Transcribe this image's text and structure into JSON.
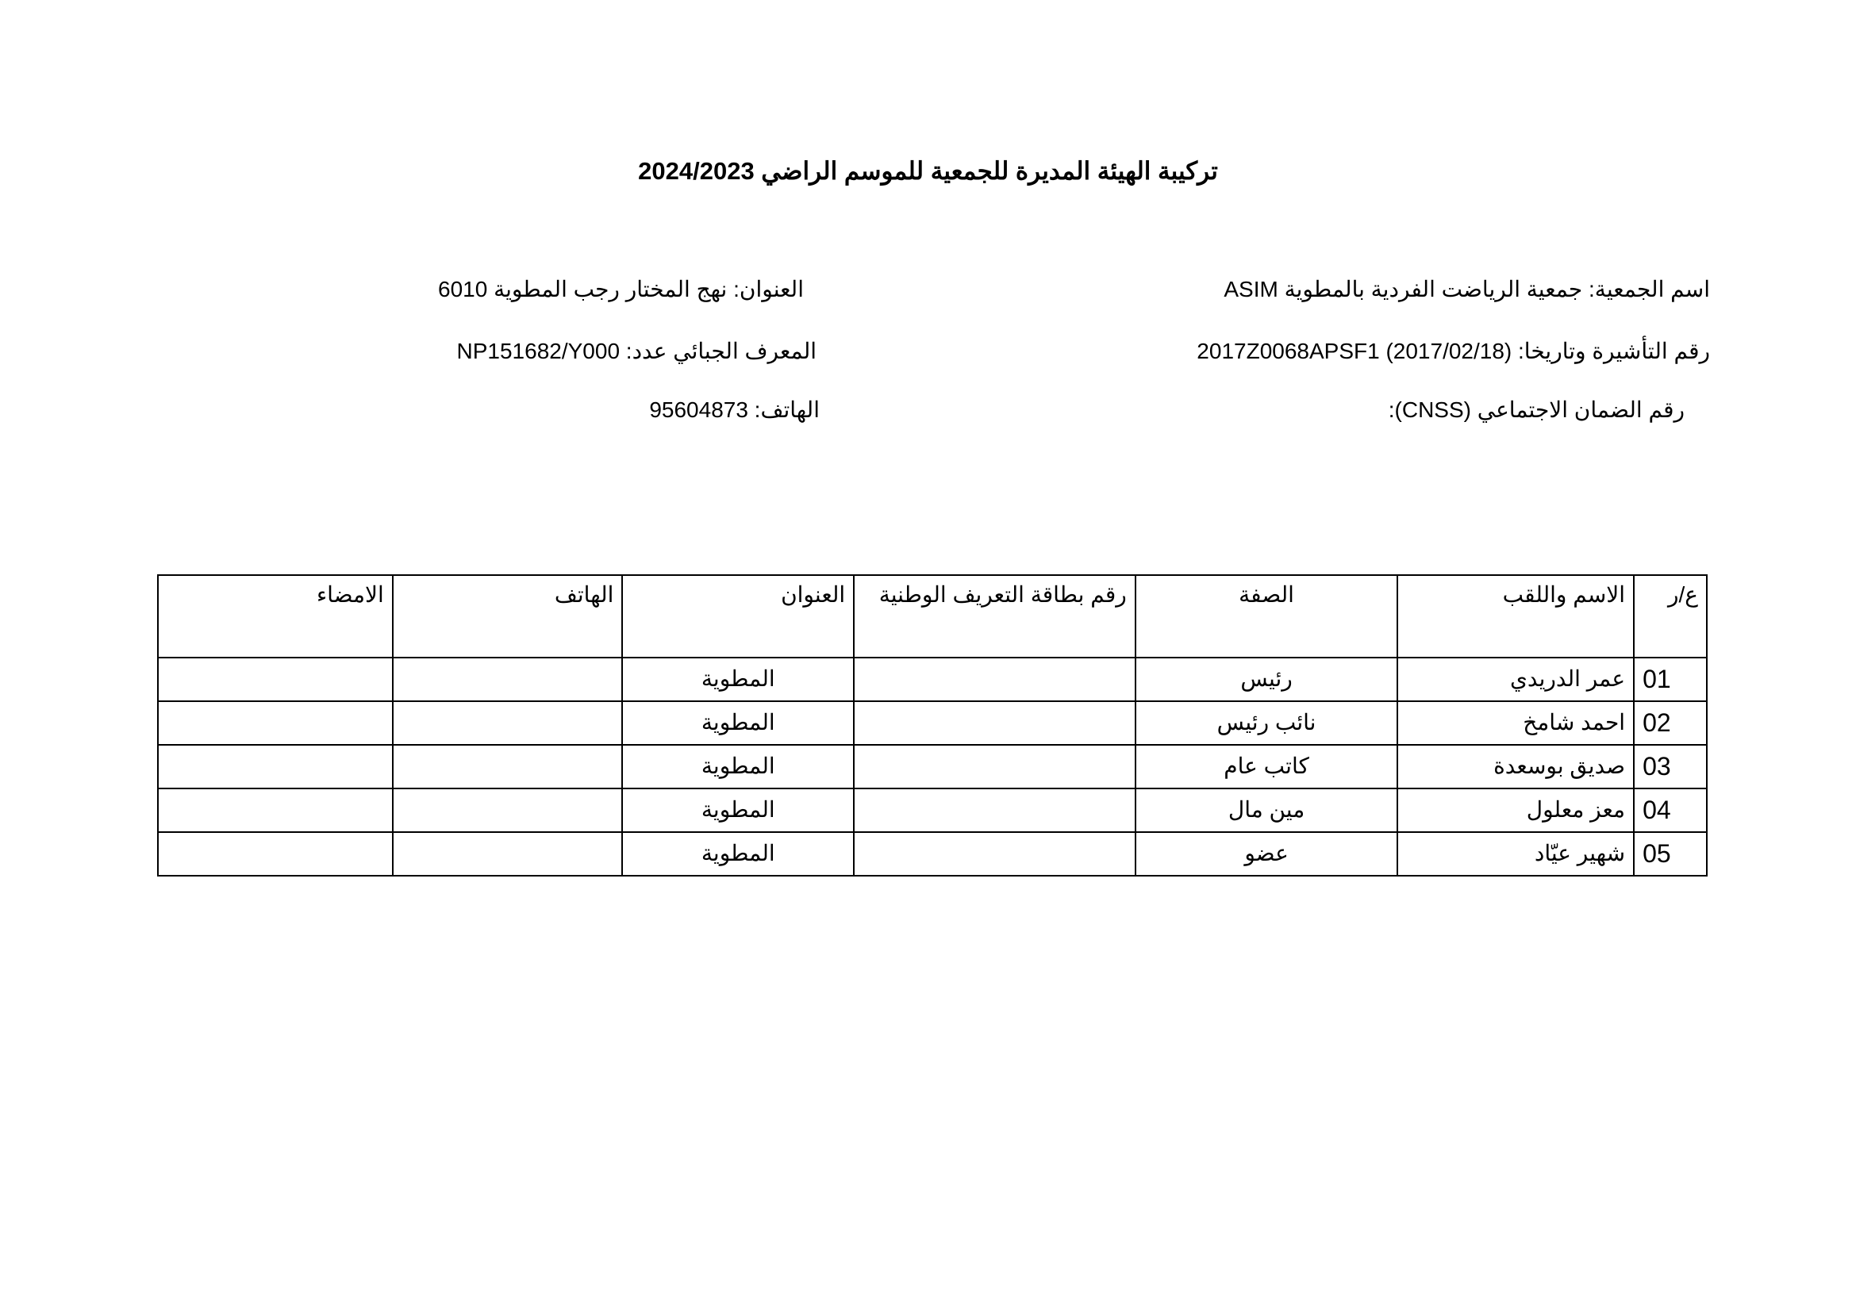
{
  "title": "تركيبة الهيئة المديرة للجمعية للموسم الراضي 2024/2023",
  "info": {
    "association_name": "اسم الجمعية: جمعية الرياضت الفردية بالمطوية  ASIM",
    "visa": "رقم التأشيرة وتاريخا:  2017Z0068APSF1 (2017/02/18)",
    "cnss": "رقم الضمان الاجتماعي (CNSS):",
    "address": "العنوان: نهج المختار رجب المطوية 6010",
    "tax_id": "المعرف الجبائي عدد: NP151682/Y000",
    "phone": "الهاتف: 95604873"
  },
  "table": {
    "headers": [
      "ع/ر",
      "الاسم واللقب",
      "الصفة",
      "رقم بطاقة التعريف الوطنية",
      "العنوان",
      "الهاتف",
      "الامضاء"
    ],
    "rows": [
      {
        "num": "01",
        "name": "عمر الدريدي",
        "role": "رئيس",
        "cin": "",
        "address": "المطوية",
        "phone": "",
        "signature": ""
      },
      {
        "num": "02",
        "name": "احمد شامخ",
        "role": "نائب رئيس",
        "cin": "",
        "address": "المطوية",
        "phone": "",
        "signature": ""
      },
      {
        "num": "03",
        "name": "صديق بوسعدة",
        "role": "كاتب عام",
        "cin": "",
        "address": "المطوية",
        "phone": "",
        "signature": ""
      },
      {
        "num": "04",
        "name": "معز معلول",
        "role": "مين مال",
        "cin": "",
        "address": "المطوية",
        "phone": "",
        "signature": ""
      },
      {
        "num": "05",
        "name": "شهير عيّاد",
        "role": "عضو",
        "cin": "",
        "address": "المطوية",
        "phone": "",
        "signature": ""
      }
    ]
  }
}
